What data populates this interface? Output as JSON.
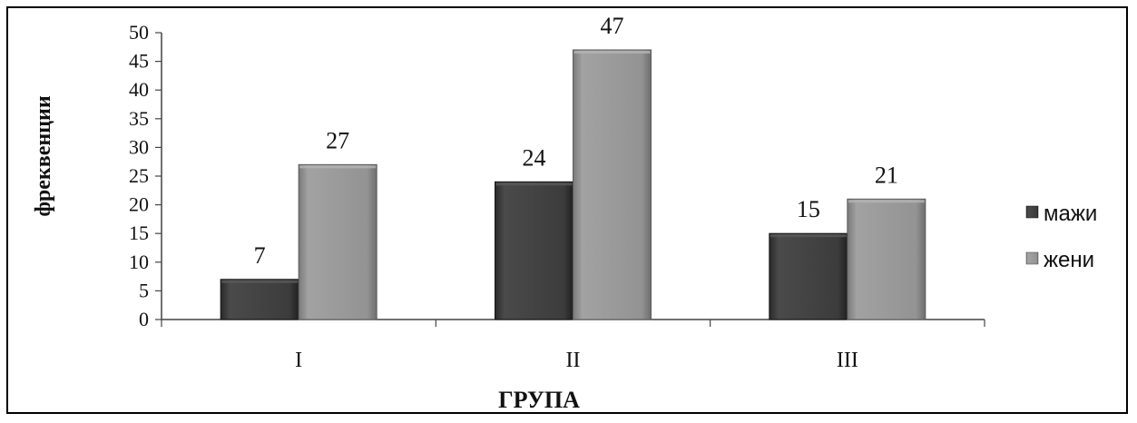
{
  "chart_data": {
    "type": "bar",
    "categories": [
      "I",
      "II",
      "III"
    ],
    "series": [
      {
        "name": "мажи",
        "values": [
          7,
          24,
          15
        ],
        "color": "#3a3a3a"
      },
      {
        "name": "жени",
        "values": [
          27,
          47,
          21
        ],
        "color": "#8e8e8e"
      }
    ],
    "ylabel": "фреквенции",
    "xlabel": "ГРУПА",
    "ylim": [
      0,
      50
    ],
    "yticks": [
      0,
      5,
      10,
      15,
      20,
      25,
      30,
      35,
      40,
      45,
      50
    ],
    "grid": false,
    "legend": "right",
    "data_labels": true
  }
}
